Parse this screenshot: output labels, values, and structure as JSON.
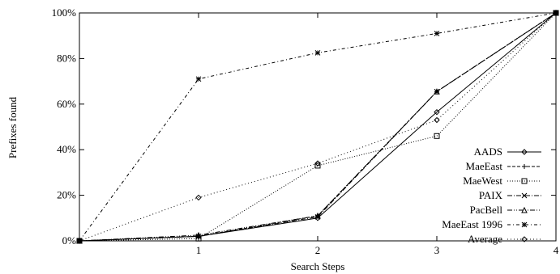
{
  "chart_data": {
    "type": "line",
    "title": "",
    "xlabel": "Search Steps",
    "ylabel": "Prefixes found",
    "x": [
      0,
      1,
      2,
      3,
      4
    ],
    "x_ticks": [
      "1",
      "2",
      "3",
      "4"
    ],
    "y_ticks": [
      "0%",
      "20%",
      "40%",
      "60%",
      "80%",
      "100%"
    ],
    "xlim": [
      0,
      4
    ],
    "ylim": [
      0,
      100
    ],
    "grid": false,
    "legend_position": "bottom-right",
    "series": [
      {
        "name": "AADS",
        "values": [
          0,
          2,
          10,
          56.5,
          100
        ],
        "marker": "diamond",
        "dash": ""
      },
      {
        "name": "MaeEast",
        "values": [
          0,
          2,
          11,
          65.5,
          100
        ],
        "marker": "plus",
        "dash": "4,2"
      },
      {
        "name": "MaeWest",
        "values": [
          0,
          1,
          33,
          46,
          100
        ],
        "marker": "square",
        "dash": "1,2"
      },
      {
        "name": "PAIX",
        "values": [
          0,
          2,
          10.5,
          65.5,
          100
        ],
        "marker": "cross",
        "dash": "6,2,1,2"
      },
      {
        "name": "PacBell",
        "values": [
          0,
          2.5,
          11,
          65.5,
          100
        ],
        "marker": "triangle",
        "dash": "6,2,1,2,1,2"
      },
      {
        "name": "MaeEast 1996",
        "values": [
          0,
          71,
          82.5,
          91,
          100
        ],
        "marker": "star",
        "dash": "4,3,1,3"
      },
      {
        "name": "Average",
        "values": [
          0,
          19,
          34,
          53,
          100
        ],
        "marker": "diamond",
        "dash": "1,3"
      }
    ],
    "extra_series_note": ""
  }
}
